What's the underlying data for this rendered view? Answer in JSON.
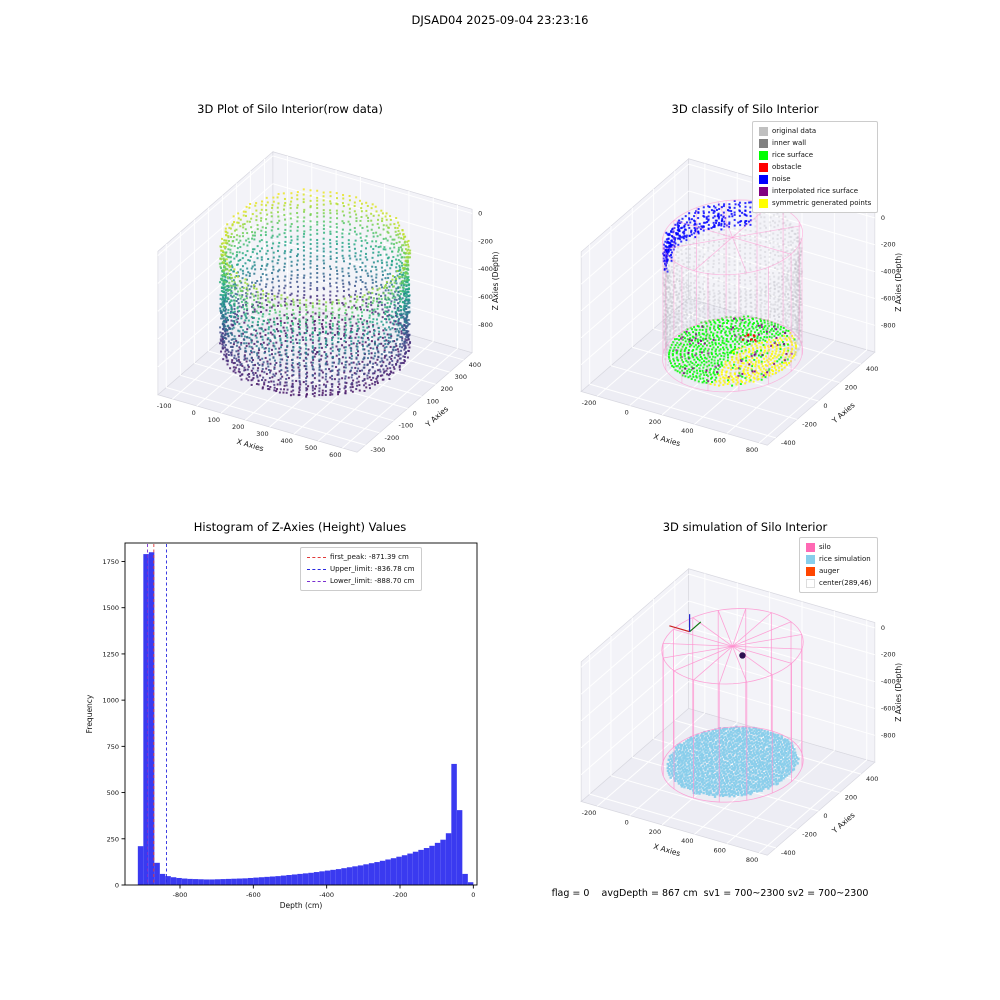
{
  "header": {
    "title": "DJSAD04 2025-09-04 23:23:16"
  },
  "status_line": "flag = 0    avgDepth = 867 cm  sv1 = 700~2300 sv2 = 700~2300",
  "chart_data": [
    {
      "type": "scatter3d",
      "title": "3D Plot of Silo Interior(row data)",
      "xlabel": "X Axies",
      "ylabel": "Y Axies",
      "zlabel": "Z Axies (Depth)",
      "xticks": [
        -100,
        0,
        100,
        200,
        300,
        400,
        500,
        600
      ],
      "yticks": [
        -300,
        -200,
        -100,
        0,
        100,
        200,
        300,
        400
      ],
      "zticks": [
        0,
        -200,
        -400,
        -600,
        -800
      ],
      "xlim": [
        -160,
        660
      ],
      "ylim": [
        -360,
        460
      ],
      "zlim": [
        -1000,
        30
      ],
      "colormap": "viridis",
      "cylinder": {
        "center_x": 250,
        "center_y": 50,
        "radius": 330,
        "rim_top": -20,
        "rim_dip": -150,
        "floor_depth": -850
      }
    },
    {
      "type": "scatter3d",
      "title": "3D classify of Silo Interior",
      "xlabel": "X Axies",
      "ylabel": "Y Axies",
      "zlabel": "Z Axies (Depth)",
      "xticks": [
        -200,
        0,
        200,
        400,
        600,
        800
      ],
      "yticks": [
        -400,
        -200,
        0,
        200,
        400
      ],
      "zticks": [
        0,
        -200,
        -400,
        -600,
        -800
      ],
      "xlim": [
        -300,
        850
      ],
      "ylim": [
        -480,
        530
      ],
      "zlim": [
        -1000,
        40
      ],
      "wireframe_color": "#ff8fce",
      "cylinder": {
        "center_x": 289,
        "center_y": 46,
        "radius": 350,
        "rim_top": -15,
        "rim_dip": -160,
        "floor_depth": -855
      },
      "legend": [
        {
          "label": "original data",
          "color": "#c0c0c0"
        },
        {
          "label": "inner wall",
          "color": "#808080"
        },
        {
          "label": "rice surface",
          "color": "#00ff00"
        },
        {
          "label": "obstacle",
          "color": "#ff0000"
        },
        {
          "label": "noise",
          "color": "#0000ff"
        },
        {
          "label": "interpolated rice surface",
          "color": "#800080"
        },
        {
          "label": "symmetric generated points",
          "color": "#ffff00"
        }
      ]
    },
    {
      "type": "histogram",
      "title": "Histogram of Z-Axies (Height) Values",
      "xlabel": "Depth (cm)",
      "ylabel": "Frequency",
      "xticks": [
        -800,
        -600,
        -400,
        -200,
        0
      ],
      "yticks": [
        0,
        250,
        500,
        750,
        1000,
        1250,
        1500,
        1750
      ],
      "xlim": [
        -950,
        10
      ],
      "ylim": [
        0,
        1850
      ],
      "bar_color": "#3a3af0",
      "bin_start": -915,
      "bin_width": 15,
      "values": [
        210,
        1790,
        1800,
        120,
        60,
        48,
        42,
        38,
        35,
        33,
        32,
        31,
        30,
        30,
        31,
        32,
        33,
        34,
        35,
        36,
        38,
        40,
        42,
        44,
        46,
        48,
        51,
        54,
        57,
        60,
        63,
        66,
        70,
        74,
        78,
        82,
        86,
        91,
        96,
        101,
        106,
        112,
        118,
        124,
        131,
        138,
        145,
        153,
        161,
        170,
        180,
        190,
        200,
        212,
        228,
        245,
        280,
        655,
        405,
        60,
        15
      ],
      "lines": [
        {
          "label": "first_peak: -871.39 cm",
          "value": -871.39,
          "color": "#e03a3a"
        },
        {
          "label": "Upper_limit: -836.78 cm",
          "value": -836.78,
          "color": "#2929e0"
        },
        {
          "label": "Lower_limit: -888.70 cm",
          "value": -888.7,
          "color": "#7b2fd0"
        }
      ]
    },
    {
      "type": "scatter3d",
      "title": "3D simulation of Silo Interior",
      "xlabel": "X Axies",
      "ylabel": "Y Axies",
      "zlabel": "Z Axies (Depth)",
      "xticks": [
        -200,
        0,
        200,
        400,
        600,
        800
      ],
      "yticks": [
        -400,
        -200,
        0,
        200,
        400
      ],
      "zticks": [
        0,
        -200,
        -400,
        -600,
        -800
      ],
      "xlim": [
        -300,
        850
      ],
      "ylim": [
        -480,
        530
      ],
      "zlim": [
        -1000,
        40
      ],
      "wireframe_color": "#ff8fce",
      "cylinder": {
        "center_x": 289,
        "center_y": 46,
        "radius": 355,
        "floor_depth": -860
      },
      "legend": [
        {
          "label": "silo",
          "color": "#ff69b4"
        },
        {
          "label": "rice simulation",
          "color": "#87ceeb"
        },
        {
          "label": "auger",
          "color": "#ff4500"
        },
        {
          "label": "center(289,46)",
          "color": "#ffffff"
        }
      ]
    }
  ]
}
